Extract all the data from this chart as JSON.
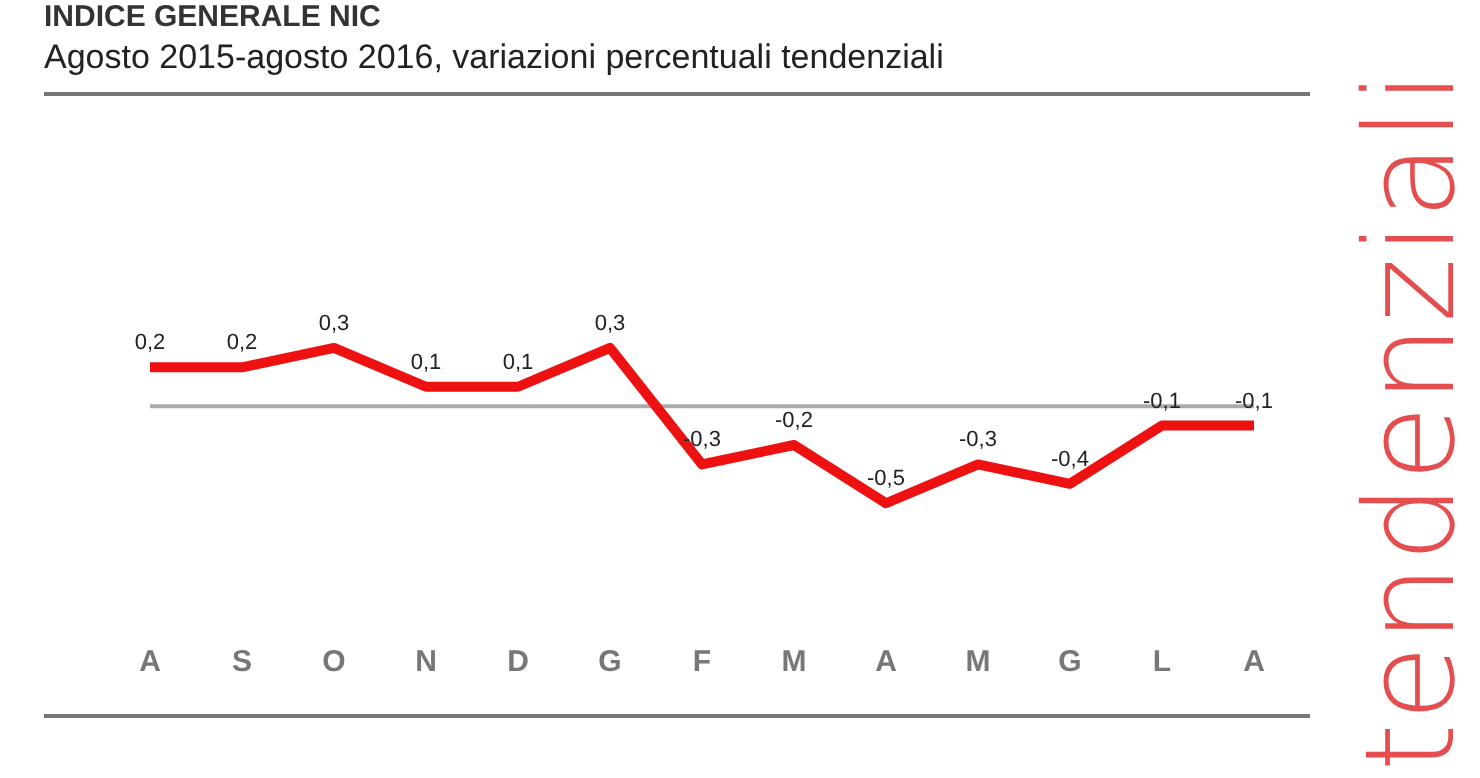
{
  "chart_data": {
    "type": "line",
    "title": "INDICE GENERALE NIC",
    "subtitle": "Agosto 2015-agosto 2016, variazioni percentuali tendenziali",
    "annotations": [
      "tendenziali"
    ],
    "categories": [
      "A",
      "S",
      "O",
      "N",
      "D",
      "G",
      "F",
      "M",
      "A",
      "M",
      "G",
      "L",
      "A"
    ],
    "series": [
      {
        "color": "#ee1111",
        "values": [
          0.2,
          0.2,
          0.3,
          0.1,
          0.1,
          0.3,
          -0.3,
          -0.2,
          -0.5,
          -0.3,
          -0.4,
          -0.1,
          -0.1
        ],
        "value_labels": [
          "0,2",
          "0,2",
          "0,3",
          "0,1",
          "0,1",
          "0,3",
          "-0,3",
          "-0,2",
          "-0,5",
          "-0,3",
          "-0,4",
          "-0,1",
          "-0,1"
        ]
      }
    ],
    "ref_lines": [
      {
        "axis": "y",
        "value": 0,
        "color": "#aaaaaa"
      }
    ],
    "grid": false,
    "marker": "none",
    "line_style": "solid"
  }
}
